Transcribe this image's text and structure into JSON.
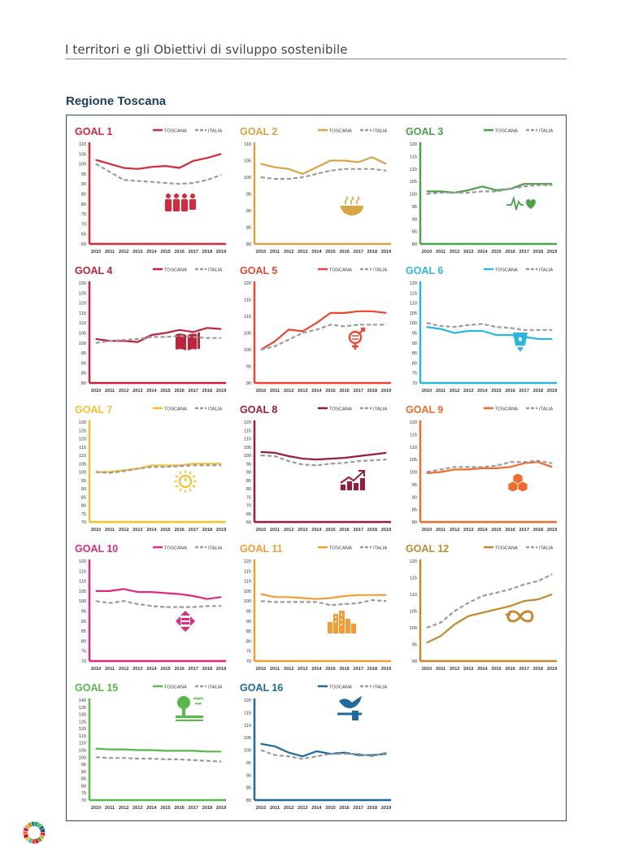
{
  "header": {
    "title": "I territori e gli Obiettivi di sviluppo sostenibile"
  },
  "region": {
    "title": "Regione Toscana"
  },
  "legend": {
    "toscana": "TOSCANA",
    "italia": "ITALIA"
  },
  "colors": {
    "italia": "#9b9b9b"
  },
  "years": [
    "2010",
    "2011",
    "2012",
    "2013",
    "2014",
    "2015",
    "2016",
    "2017",
    "2018",
    "2019"
  ],
  "chart_data": [
    {
      "type": "line",
      "title": "GOAL 1",
      "color": "#d6293b",
      "icon": "family-icon",
      "ylim": [
        60,
        110
      ],
      "yticks": [
        60,
        65,
        70,
        75,
        80,
        85,
        90,
        95,
        100,
        105,
        110
      ],
      "series": [
        {
          "name": "TOSCANA",
          "values": [
            102,
            100,
            98,
            97.5,
            98.5,
            99,
            98,
            101.5,
            103,
            105
          ]
        },
        {
          "name": "ITALIA",
          "values": [
            100,
            96,
            92,
            91.5,
            91,
            90.5,
            90,
            90.5,
            92,
            94.5
          ]
        }
      ]
    },
    {
      "type": "line",
      "title": "GOAL 2",
      "color": "#d9a444",
      "icon": "food-bowl-icon",
      "ylim": [
        80,
        110
      ],
      "yticks": [
        80,
        85,
        90,
        95,
        100,
        105,
        110
      ],
      "series": [
        {
          "name": "TOSCANA",
          "values": [
            104,
            103,
            102.5,
            101,
            103,
            105,
            105,
            104.5,
            106,
            104
          ]
        },
        {
          "name": "ITALIA",
          "values": [
            100,
            99.5,
            99.5,
            100,
            101,
            102,
            102.5,
            102.5,
            102.5,
            102
          ]
        }
      ]
    },
    {
      "type": "line",
      "title": "GOAL 3",
      "color": "#4ba146",
      "icon": "heartbeat-icon",
      "ylim": [
        80,
        120
      ],
      "yticks": [
        80,
        85,
        90,
        95,
        100,
        105,
        110,
        115,
        120
      ],
      "series": [
        {
          "name": "TOSCANA",
          "values": [
            101,
            101,
            100.5,
            101.5,
            103,
            101.5,
            102,
            104,
            104,
            104
          ]
        },
        {
          "name": "ITALIA",
          "values": [
            100,
            100.5,
            100.5,
            100.5,
            101,
            101,
            102,
            103,
            103.5,
            103.5
          ]
        }
      ]
    },
    {
      "type": "line",
      "title": "GOAL 4",
      "color": "#c1233b",
      "icon": "book-icon",
      "ylim": [
        80,
        130
      ],
      "yticks": [
        80,
        85,
        90,
        95,
        100,
        105,
        110,
        115,
        120,
        125,
        130
      ],
      "series": [
        {
          "name": "TOSCANA",
          "values": [
            102,
            101,
            101,
            100.5,
            104,
            105,
            106.5,
            105.5,
            107.5,
            107
          ]
        },
        {
          "name": "ITALIA",
          "values": [
            100,
            101,
            101.5,
            102,
            103,
            103,
            103.5,
            103,
            102.5,
            102.5
          ]
        }
      ]
    },
    {
      "type": "line",
      "title": "GOAL 5",
      "color": "#e9472f",
      "icon": "gender-icon",
      "ylim": [
        90,
        120
      ],
      "yticks": [
        90,
        95,
        100,
        105,
        110,
        115,
        120
      ],
      "series": [
        {
          "name": "TOSCANA",
          "values": [
            100,
            102.5,
            106,
            105.5,
            108,
            111,
            111,
            111.5,
            111.5,
            111
          ]
        },
        {
          "name": "ITALIA",
          "values": [
            100,
            101,
            103,
            105,
            106,
            107.5,
            107,
            107.5,
            107.5,
            107.5
          ]
        }
      ]
    },
    {
      "type": "line",
      "title": "GOAL 6",
      "color": "#2bb7de",
      "icon": "water-icon",
      "ylim": [
        70,
        120
      ],
      "yticks": [
        70,
        75,
        80,
        85,
        90,
        95,
        100,
        105,
        110,
        115,
        120
      ],
      "series": [
        {
          "name": "TOSCANA",
          "values": [
            98,
            97,
            95,
            96,
            96,
            94,
            94,
            93,
            92,
            92
          ]
        },
        {
          "name": "ITALIA",
          "values": [
            100,
            98.5,
            98,
            99,
            99.5,
            98,
            97.5,
            96.5,
            96.5,
            96.5
          ]
        }
      ]
    },
    {
      "type": "line",
      "title": "GOAL 7",
      "color": "#f5c12c",
      "icon": "sun-power-icon",
      "ylim": [
        70,
        130
      ],
      "yticks": [
        70,
        75,
        80,
        85,
        90,
        95,
        100,
        105,
        110,
        115,
        120,
        125,
        130
      ],
      "series": [
        {
          "name": "TOSCANA",
          "values": [
            100,
            100,
            101,
            102,
            104,
            104,
            104,
            105,
            105,
            105
          ]
        },
        {
          "name": "ITALIA",
          "values": [
            100,
            99.5,
            100.5,
            102,
            103,
            103,
            103.5,
            104,
            104,
            104
          ]
        }
      ]
    },
    {
      "type": "line",
      "title": "GOAL 8",
      "color": "#9b1b3d",
      "icon": "growth-chart-icon",
      "ylim": [
        60,
        120
      ],
      "yticks": [
        60,
        65,
        70,
        75,
        80,
        85,
        90,
        95,
        100,
        105,
        110,
        115,
        120
      ],
      "series": [
        {
          "name": "TOSCANA",
          "values": [
            102,
            101.5,
            99.5,
            98,
            97.5,
            98,
            98.5,
            99.5,
            100.5,
            101.5
          ]
        },
        {
          "name": "ITALIA",
          "values": [
            100,
            99.5,
            96.5,
            94.5,
            94,
            95,
            95.5,
            96.5,
            97,
            97.5
          ]
        }
      ]
    },
    {
      "type": "line",
      "title": "GOAL 9",
      "color": "#f06c2c",
      "icon": "cubes-icon",
      "ylim": [
        80,
        120
      ],
      "yticks": [
        80,
        85,
        90,
        95,
        100,
        105,
        110,
        115,
        120
      ],
      "series": [
        {
          "name": "TOSCANA",
          "values": [
            99.5,
            100,
            101,
            101,
            101.5,
            101.5,
            102,
            103.5,
            104,
            102
          ]
        },
        {
          "name": "ITALIA",
          "values": [
            100,
            101,
            102,
            102,
            102,
            102.5,
            104,
            104,
            104.5,
            103.5
          ]
        }
      ]
    },
    {
      "type": "line",
      "title": "GOAL 10",
      "color": "#df2a7e",
      "icon": "equality-arrows-icon",
      "ylim": [
        70,
        120
      ],
      "yticks": [
        70,
        75,
        80,
        85,
        90,
        95,
        100,
        105,
        110,
        115,
        120
      ],
      "series": [
        {
          "name": "TOSCANA",
          "values": [
            105,
            105,
            106,
            104.5,
            104.5,
            104,
            103.5,
            102.5,
            101,
            102
          ]
        },
        {
          "name": "ITALIA",
          "values": [
            100,
            99,
            100,
            98.5,
            97.5,
            97,
            97,
            97,
            97.5,
            97.5
          ]
        }
      ]
    },
    {
      "type": "line",
      "title": "GOAL 11",
      "color": "#f59c33",
      "icon": "city-icon",
      "ylim": [
        70,
        120
      ],
      "yticks": [
        70,
        75,
        80,
        85,
        90,
        95,
        100,
        105,
        110,
        115,
        120
      ],
      "series": [
        {
          "name": "TOSCANA",
          "values": [
            103.5,
            102,
            102,
            101.5,
            101,
            101.5,
            102.5,
            103,
            103,
            103
          ]
        },
        {
          "name": "ITALIA",
          "values": [
            100,
            99.5,
            99.5,
            99.5,
            99.5,
            98,
            98.5,
            99,
            100.5,
            100
          ]
        }
      ]
    },
    {
      "type": "line",
      "title": "GOAL 12",
      "color": "#c08a2e",
      "icon": "infinity-icon",
      "ylim": [
        90,
        120
      ],
      "yticks": [
        90,
        95,
        100,
        105,
        110,
        115,
        120
      ],
      "series": [
        {
          "name": "TOSCANA",
          "values": [
            95.5,
            97.5,
            101,
            103.5,
            104.5,
            105.5,
            106.5,
            108,
            108.5,
            110
          ]
        },
        {
          "name": "ITALIA",
          "values": [
            100,
            101.5,
            105,
            107.5,
            109.5,
            110.5,
            111.5,
            113,
            114,
            116
          ]
        }
      ]
    },
    {
      "type": "line",
      "title": "GOAL 15",
      "color": "#56b948",
      "icon": "tree-icon",
      "ylim": [
        70,
        140
      ],
      "yticks": [
        70,
        75,
        80,
        85,
        90,
        95,
        100,
        105,
        110,
        115,
        120,
        125,
        130,
        135,
        140
      ],
      "series": [
        {
          "name": "TOSCANA",
          "values": [
            106,
            105.5,
            105.5,
            105,
            105,
            104.5,
            104.5,
            104.5,
            104,
            104
          ]
        },
        {
          "name": "ITALIA",
          "values": [
            100,
            99.5,
            99.5,
            99,
            99,
            98.5,
            98.5,
            98,
            97.5,
            97
          ]
        }
      ]
    },
    {
      "type": "line",
      "title": "GOAL 16",
      "color": "#1d6a9b",
      "icon": "dove-icon",
      "ylim": [
        80,
        120
      ],
      "yticks": [
        80,
        85,
        90,
        95,
        100,
        105,
        110,
        115,
        120
      ],
      "series": [
        {
          "name": "TOSCANA",
          "values": [
            102.5,
            101.5,
            99,
            97.5,
            99.5,
            98.5,
            99,
            98,
            98,
            98.5
          ]
        },
        {
          "name": "ITALIA",
          "values": [
            100,
            98,
            97.5,
            96.5,
            97.5,
            98.5,
            98.5,
            98.5,
            97.5,
            99
          ]
        }
      ]
    }
  ]
}
